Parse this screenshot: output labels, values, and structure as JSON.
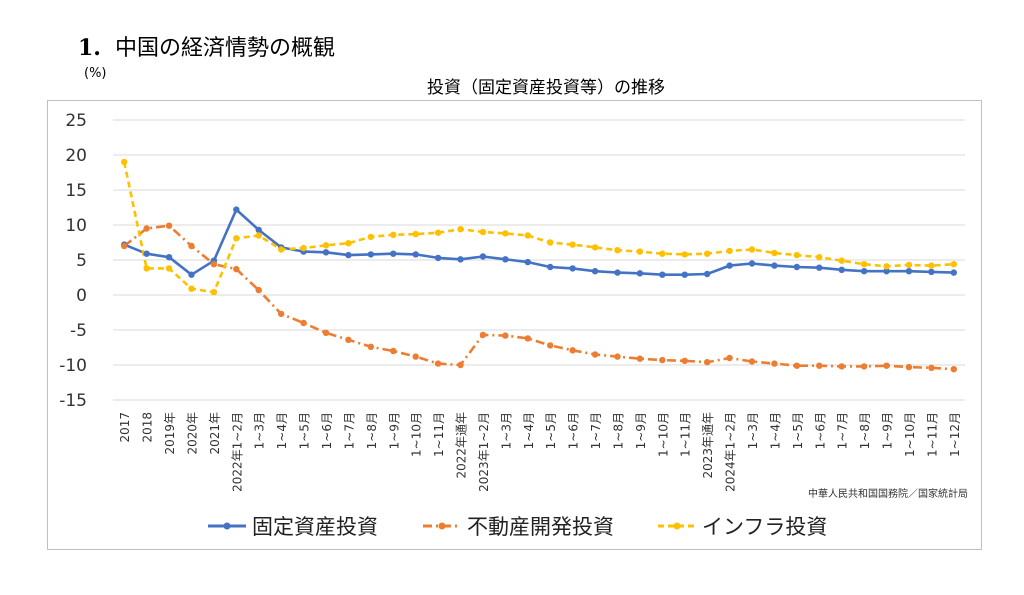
{
  "heading": {
    "number": "1.",
    "text": "中国の経済情勢の概観"
  },
  "unit_label": "(%)",
  "chart_data": {
    "type": "line",
    "title": "投資（固定資産投資等）の推移",
    "xlabel": "",
    "ylabel": "",
    "ylim": [
      -15,
      25
    ],
    "yticks": [
      25,
      20,
      15,
      10,
      5,
      0,
      -5,
      -10,
      -15
    ],
    "grid": true,
    "legend_position": "bottom",
    "source_note": "中華人民共和国国務院／国家統計局",
    "categories": [
      "2017",
      "2018",
      "2019年",
      "2020年",
      "2021年",
      "2022年1~2月",
      "1~3月",
      "1~4月",
      "1~5月",
      "1~6月",
      "1~7月",
      "1~8月",
      "1~9月",
      "1~10月",
      "1~11月",
      "2022年通年",
      "2023年1~2月",
      "1~3月",
      "1~4月",
      "1~5月",
      "1~6月",
      "1~7月",
      "1~8月",
      "1~9月",
      "1~10月",
      "1~11月",
      "2023年通年",
      "2024年1~2月",
      "1~3月",
      "1~4月",
      "1~5月",
      "1~6月",
      "1~7月",
      "1~8月",
      "1~9月",
      "1~10月",
      "1~11月",
      "1~12月"
    ],
    "series": [
      {
        "name": "固定資産投資",
        "color": "#4472c4",
        "style": "solid-marker",
        "values": [
          7.2,
          5.9,
          5.4,
          2.9,
          4.9,
          12.2,
          9.3,
          6.8,
          6.2,
          6.1,
          5.7,
          5.8,
          5.9,
          5.8,
          5.3,
          5.1,
          5.5,
          5.1,
          4.7,
          4.0,
          3.8,
          3.4,
          3.2,
          3.1,
          2.9,
          2.9,
          3.0,
          4.2,
          4.5,
          4.2,
          4.0,
          3.9,
          3.6,
          3.4,
          3.4,
          3.4,
          3.3,
          3.2
        ]
      },
      {
        "name": "不動産開発投資",
        "color": "#ed7d31",
        "style": "dashdot-marker",
        "values": [
          7.0,
          9.5,
          9.9,
          7.0,
          4.4,
          3.7,
          0.7,
          -2.7,
          -4.0,
          -5.4,
          -6.4,
          -7.4,
          -8.0,
          -8.8,
          -9.8,
          -10.0,
          -5.7,
          -5.8,
          -6.2,
          -7.2,
          -7.9,
          -8.5,
          -8.8,
          -9.1,
          -9.3,
          -9.4,
          -9.6,
          -9.0,
          -9.5,
          -9.8,
          -10.1,
          -10.1,
          -10.2,
          -10.2,
          -10.1,
          -10.3,
          -10.4,
          -10.6
        ]
      },
      {
        "name": "インフラ投資",
        "color": "#ffc000",
        "style": "dash-marker",
        "values": [
          19.0,
          3.8,
          3.8,
          0.9,
          0.4,
          8.1,
          8.5,
          6.5,
          6.7,
          7.1,
          7.4,
          8.3,
          8.6,
          8.7,
          8.9,
          9.4,
          9.0,
          8.8,
          8.5,
          7.5,
          7.2,
          6.8,
          6.4,
          6.2,
          5.9,
          5.8,
          5.9,
          6.3,
          6.5,
          6.0,
          5.7,
          5.4,
          4.9,
          4.4,
          4.1,
          4.3,
          4.2,
          4.4
        ]
      }
    ]
  }
}
